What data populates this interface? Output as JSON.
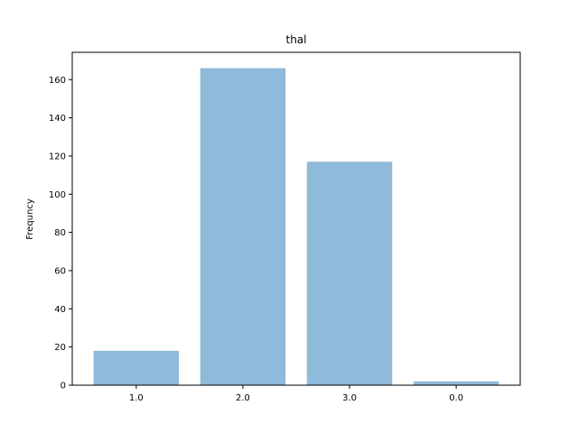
{
  "chart_data": {
    "type": "bar",
    "title": "thal",
    "xlabel": "",
    "ylabel": "Frequncy",
    "categories": [
      "1.0",
      "2.0",
      "3.0",
      "0.0"
    ],
    "values": [
      18,
      166,
      117,
      2
    ],
    "ylim": [
      0,
      174.3
    ],
    "yticks": [
      0,
      20,
      40,
      60,
      80,
      100,
      120,
      140,
      160
    ],
    "bar_color": "#8fbad9",
    "grid": false
  }
}
